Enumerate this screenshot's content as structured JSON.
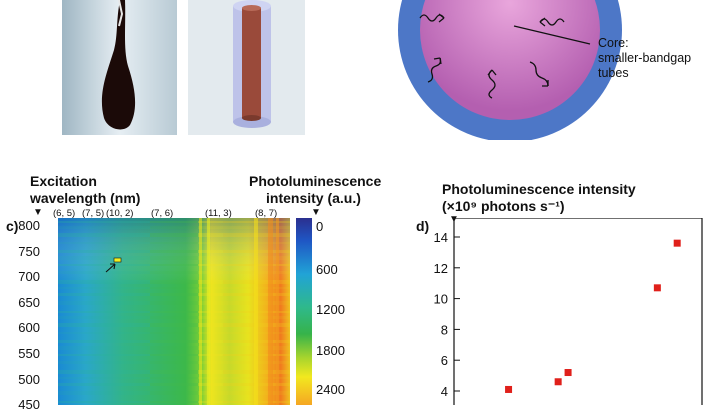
{
  "panel_top": {
    "core_label_lines": [
      "Core:",
      "smaller-bandgap",
      "tubes"
    ]
  },
  "panel_c": {
    "letter": "c)",
    "left_title_lines": [
      "Excitation",
      "wavelength (nm)"
    ],
    "right_title_lines": [
      "Photoluminescence",
      "intensity (a.u.)"
    ],
    "peak_labels": [
      "(6, 5)",
      "(7, 5)",
      "(10, 2)",
      "(7, 6)",
      "(11, 3)",
      "(8, 7)"
    ],
    "y_ticks": [
      "800",
      "750",
      "700",
      "650",
      "600",
      "550",
      "500",
      "450"
    ],
    "colorbar_ticks": [
      "0",
      "600",
      "1200",
      "1800",
      "2400"
    ],
    "colors": [
      "#2b3a9a",
      "#1f6fd0",
      "#29a9d8",
      "#2fbf9a",
      "#34b34a",
      "#9fd12f",
      "#f2e81f",
      "#f5a623",
      "#e4572e"
    ]
  },
  "chart_data": {
    "type": "scatter",
    "letter": "d)",
    "title_lines": [
      "Photoluminescence intensity",
      "(×10⁹ photons s⁻¹)"
    ],
    "y_ticks": [
      "14",
      "12",
      "10",
      "8",
      "6",
      "4"
    ],
    "ylim": [
      3,
      15
    ],
    "xlim": [
      0,
      1
    ],
    "points": [
      {
        "x": 0.22,
        "y": 4.1
      },
      {
        "x": 0.42,
        "y": 4.6
      },
      {
        "x": 0.46,
        "y": 5.2
      },
      {
        "x": 0.82,
        "y": 10.7
      },
      {
        "x": 0.9,
        "y": 13.6
      }
    ],
    "marker_color": "#e0201b",
    "grid": false
  }
}
